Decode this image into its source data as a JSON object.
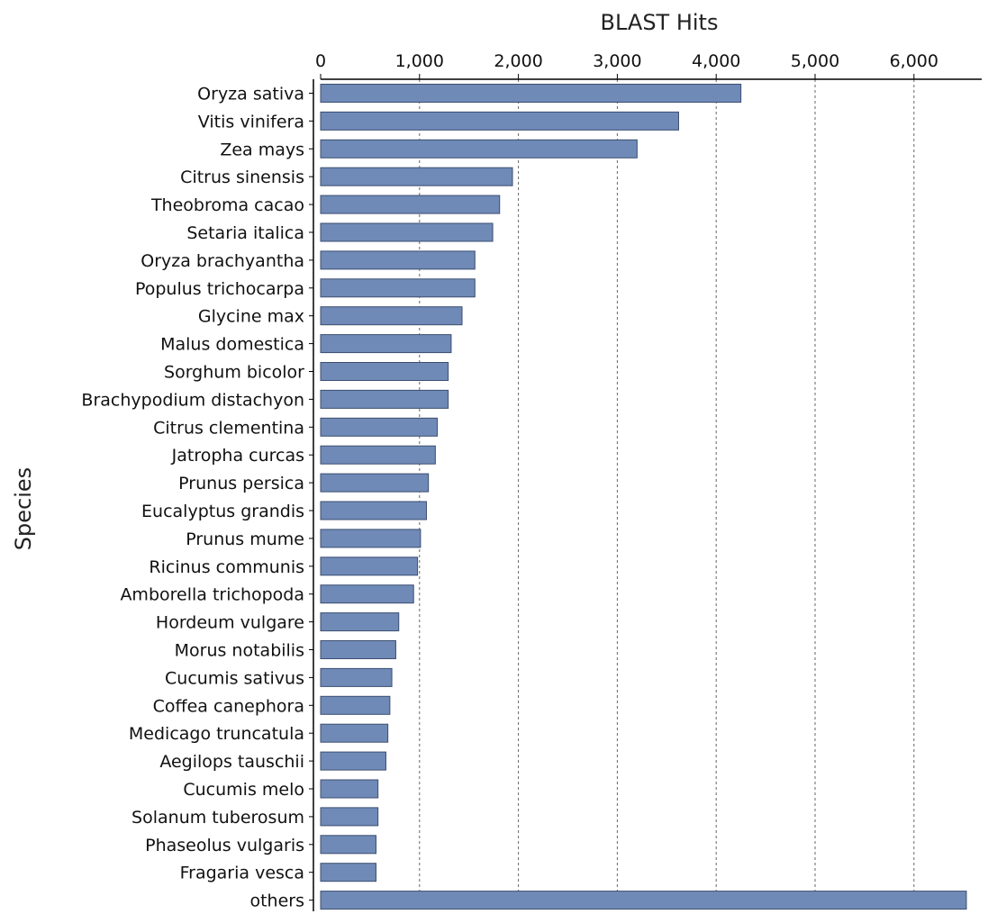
{
  "chart_data": {
    "type": "bar",
    "orientation": "horizontal",
    "title": "",
    "xlabel": "BLAST Hits",
    "ylabel": "Species",
    "xlim": [
      0,
      6500
    ],
    "xticks": [
      0,
      1000,
      2000,
      3000,
      4000,
      5000,
      6000
    ],
    "xtick_labels": [
      "0",
      "1,000",
      "2,000",
      "3,000",
      "4,000",
      "5,000",
      "6,000"
    ],
    "x_axis_position": "top",
    "grid": "vertical dashed",
    "bar_color": "#6f8ab7",
    "categories": [
      "Oryza sativa",
      "Vitis vinifera",
      "Zea mays",
      "Citrus sinensis",
      "Theobroma cacao",
      "Setaria italica",
      "Oryza brachyantha",
      "Populus trichocarpa",
      "Glycine max",
      "Malus domestica",
      "Sorghum bicolor",
      "Brachypodium distachyon",
      "Citrus clementina",
      "Jatropha curcas",
      "Prunus persica",
      "Eucalyptus grandis",
      "Prunus mume",
      "Ricinus communis",
      "Amborella trichopoda",
      "Hordeum vulgare",
      "Morus notabilis",
      "Cucumis sativus",
      "Coffea canephora",
      "Medicago truncatula",
      "Aegilops tauschii",
      "Cucumis melo",
      "Solanum tuberosum",
      "Phaseolus vulgaris",
      "Fragaria vesca",
      "others"
    ],
    "values": [
      4250,
      3620,
      3200,
      1940,
      1810,
      1740,
      1560,
      1560,
      1430,
      1320,
      1290,
      1290,
      1180,
      1160,
      1090,
      1070,
      1010,
      980,
      940,
      790,
      760,
      720,
      700,
      680,
      660,
      580,
      580,
      560,
      560,
      6530
    ]
  }
}
